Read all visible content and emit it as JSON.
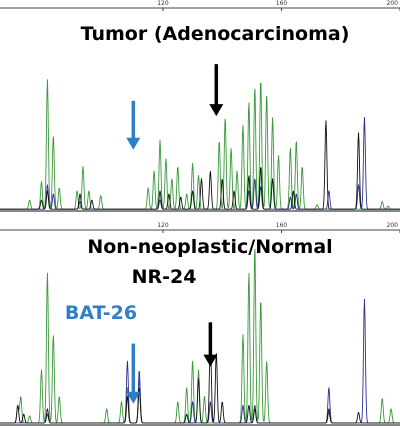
{
  "chart_data": [
    {
      "type": "line",
      "title": "Tumor (Adenocarcinoma)",
      "xlim": [
        65,
        200
      ],
      "ylim": [
        0,
        1
      ],
      "x_ticks": [
        120,
        160,
        200
      ],
      "x_tick_labels": [
        "120",
        "160",
        "200"
      ],
      "grid": false,
      "colors": {
        "green": "#3a9a3a",
        "blue": "#2e2e9a",
        "black": "#111111"
      },
      "series": [
        {
          "color": "green",
          "peaks": [
            [
              75,
              0.06
            ],
            [
              79,
              0.18
            ],
            [
              81,
              0.85
            ],
            [
              83,
              0.48
            ],
            [
              85,
              0.14
            ],
            [
              91,
              0.12
            ],
            [
              93,
              0.28
            ],
            [
              95,
              0.12
            ],
            [
              99,
              0.09
            ],
            [
              115,
              0.14
            ],
            [
              117,
              0.25
            ],
            [
              119,
              0.45
            ],
            [
              121,
              0.33
            ],
            [
              123,
              0.2
            ],
            [
              125,
              0.28
            ],
            [
              128,
              0.1
            ],
            [
              130,
              0.3
            ],
            [
              132,
              0.22
            ],
            [
              139,
              0.45
            ],
            [
              141,
              0.6
            ],
            [
              143,
              0.4
            ],
            [
              145,
              0.25
            ],
            [
              147,
              0.55
            ],
            [
              149,
              0.7
            ],
            [
              151,
              0.8
            ],
            [
              153,
              0.85
            ],
            [
              155,
              0.75
            ],
            [
              157,
              0.6
            ],
            [
              159,
              0.35
            ],
            [
              163,
              0.4
            ],
            [
              165,
              0.45
            ],
            [
              167,
              0.28
            ],
            [
              172,
              0.03
            ],
            [
              194,
              0.05
            ],
            [
              196,
              0.02
            ]
          ]
        },
        {
          "color": "blue",
          "peaks": [
            [
              81,
              0.16
            ],
            [
              83,
              0.1
            ],
            [
              92,
              0.05
            ],
            [
              119,
              0.06
            ],
            [
              149,
              0.12
            ],
            [
              151,
              0.2
            ],
            [
              153,
              0.15
            ],
            [
              163,
              0.08
            ],
            [
              165,
              0.1
            ],
            [
              176,
              0.12
            ],
            [
              186,
              0.16
            ],
            [
              188,
              0.6
            ]
          ]
        },
        {
          "color": "black",
          "peaks": [
            [
              79,
              0.06
            ],
            [
              81,
              0.12
            ],
            [
              92,
              0.1
            ],
            [
              96,
              0.06
            ],
            [
              119,
              0.12
            ],
            [
              122,
              0.1
            ],
            [
              126,
              0.08
            ],
            [
              130,
              0.12
            ],
            [
              133,
              0.2
            ],
            [
              136,
              0.25
            ],
            [
              140,
              0.2
            ],
            [
              144,
              0.12
            ],
            [
              149,
              0.22
            ],
            [
              153,
              0.28
            ],
            [
              157,
              0.2
            ],
            [
              164,
              0.12
            ],
            [
              175,
              0.58
            ],
            [
              186,
              0.5
            ]
          ]
        }
      ],
      "annotations": [
        {
          "arrow_color": "#2f7fc6",
          "x": 110,
          "y_top": 0.72,
          "y_tip": 0.4
        },
        {
          "arrow_color": "#000000",
          "x": 138,
          "y_top": 0.96,
          "y_tip": 0.62
        }
      ]
    },
    {
      "type": "line",
      "title": "Non-neoplastic/Normal",
      "xlim": [
        65,
        200
      ],
      "ylim": [
        0,
        1
      ],
      "x_ticks": [
        120,
        160,
        200
      ],
      "x_tick_labels": [
        "120",
        "160",
        "200"
      ],
      "grid": false,
      "colors": {
        "green": "#3a9a3a",
        "blue": "#2e2e9a",
        "black": "#111111"
      },
      "series": [
        {
          "color": "green",
          "peaks": [
            [
              71,
              0.1
            ],
            [
              72,
              0.15
            ],
            [
              75,
              0.04
            ],
            [
              79,
              0.3
            ],
            [
              81,
              0.85
            ],
            [
              83,
              0.5
            ],
            [
              85,
              0.15
            ],
            [
              101,
              0.08
            ],
            [
              106,
              0.12
            ],
            [
              108,
              0.2
            ],
            [
              112,
              0.25
            ],
            [
              125,
              0.12
            ],
            [
              128,
              0.2
            ],
            [
              130,
              0.35
            ],
            [
              132,
              0.3
            ],
            [
              134,
              0.15
            ],
            [
              147,
              0.5
            ],
            [
              149,
              0.85
            ],
            [
              151,
              1.0
            ],
            [
              153,
              0.7
            ],
            [
              155,
              0.35
            ],
            [
              176,
              0.06
            ],
            [
              194,
              0.14
            ],
            [
              197,
              0.08
            ]
          ]
        },
        {
          "color": "blue",
          "peaks": [
            [
              81,
              0.05
            ],
            [
              108,
              0.35
            ],
            [
              112,
              0.3
            ],
            [
              130,
              0.12
            ],
            [
              136,
              0.12
            ],
            [
              147,
              0.1
            ],
            [
              151,
              0.1
            ],
            [
              176,
              0.2
            ],
            [
              188,
              0.7
            ]
          ]
        },
        {
          "color": "black",
          "peaks": [
            [
              71,
              0.1
            ],
            [
              73,
              0.05
            ],
            [
              81,
              0.08
            ],
            [
              108,
              0.15
            ],
            [
              112,
              0.2
            ],
            [
              128,
              0.05
            ],
            [
              132,
              0.25
            ],
            [
              136,
              0.48
            ],
            [
              138,
              0.4
            ],
            [
              140,
              0.12
            ],
            [
              149,
              0.1
            ],
            [
              151,
              0.08
            ],
            [
              176,
              0.08
            ],
            [
              186,
              0.06
            ]
          ]
        }
      ],
      "annotations": [
        {
          "label": "BAT-26",
          "arrow_color": "#2f7fc6",
          "x": 110,
          "y_top": 0.46,
          "y_tip": 0.12
        },
        {
          "label": "NR-24",
          "arrow_color": "#000000",
          "x": 136,
          "y_top": 0.58,
          "y_tip": 0.33
        }
      ]
    }
  ]
}
